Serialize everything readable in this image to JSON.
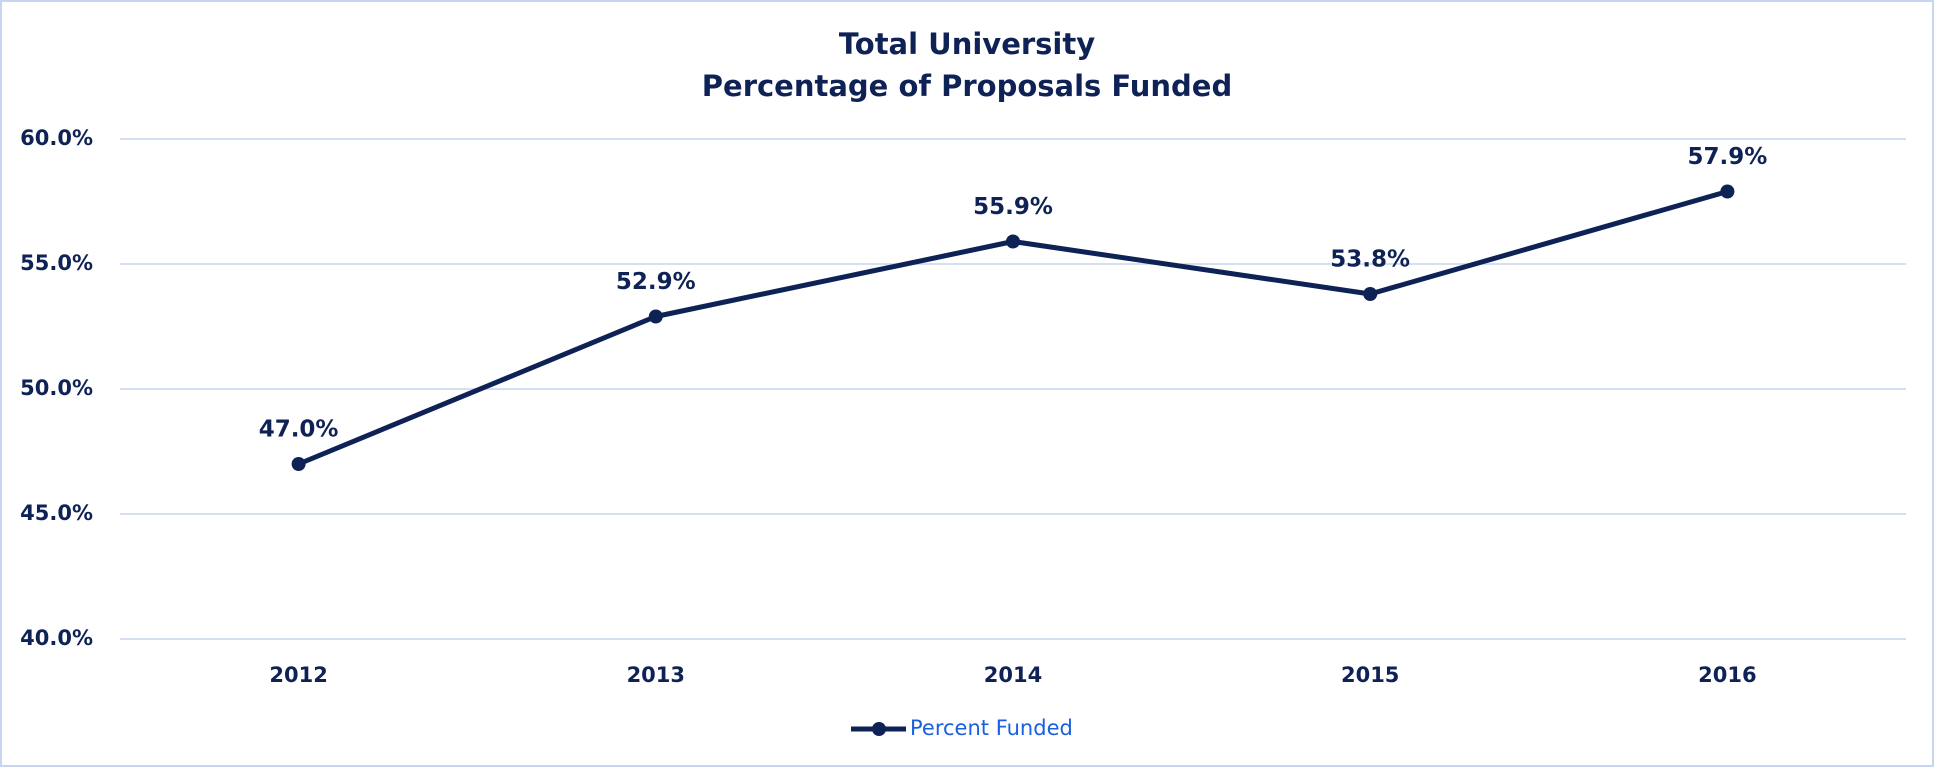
{
  "chart_data": {
    "type": "line",
    "title": [
      "Total University",
      "Percentage of Proposals Funded"
    ],
    "categories": [
      "2012",
      "2013",
      "2014",
      "2015",
      "2016"
    ],
    "series": [
      {
        "name": "Percent Funded",
        "color": "#0f2256",
        "values": [
          47.0,
          52.9,
          55.9,
          53.8,
          57.9
        ],
        "value_labels": [
          "47.0%",
          "52.9%",
          "55.9%",
          "53.8%",
          "57.9%"
        ]
      }
    ],
    "ylim": [
      40,
      60
    ],
    "yticks": [
      {
        "value": 40,
        "label": "40.0%"
      },
      {
        "value": 45,
        "label": "45.0%"
      },
      {
        "value": 50,
        "label": "50.0%"
      },
      {
        "value": 55,
        "label": "55.0%"
      },
      {
        "value": 60,
        "label": "60.0%"
      }
    ],
    "grid": true,
    "legend": "bottom"
  }
}
